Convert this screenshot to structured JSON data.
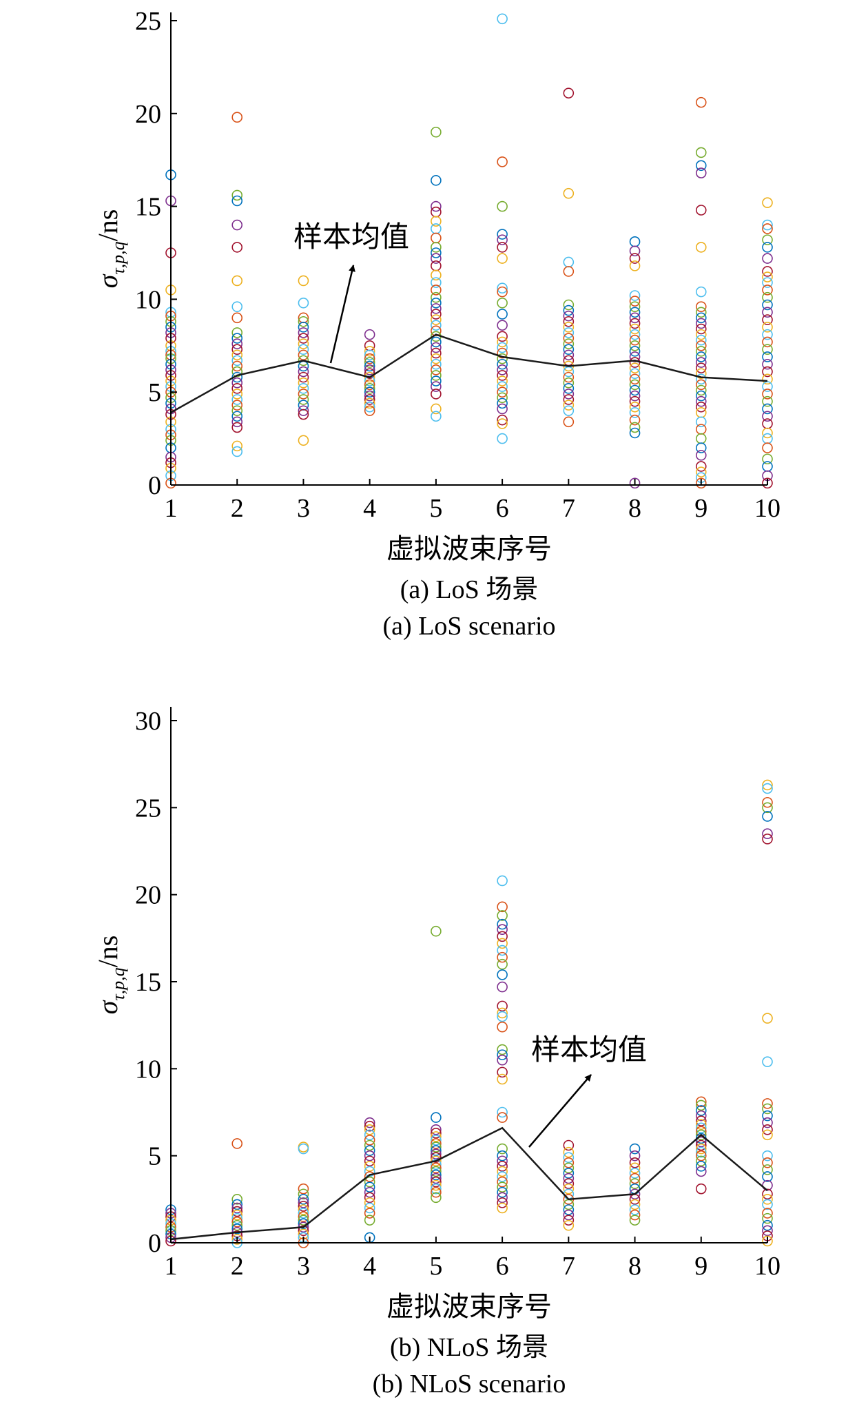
{
  "chart_data": [
    {
      "type": "scatter",
      "panel": "a",
      "ylabel": "σ",
      "ylabel_sub": "τ,p,q",
      "ylabel_unit": "/ns",
      "xlabel": "虚拟波束序号",
      "caption_cn": "(a) LoS 场景",
      "caption_en": "(a) LoS scenario",
      "annotation": "样本均值",
      "xlim": [
        1,
        10
      ],
      "ylim": [
        0,
        25
      ],
      "xticks": [
        1,
        2,
        3,
        4,
        5,
        6,
        7,
        8,
        9,
        10
      ],
      "yticks": [
        0,
        5,
        10,
        15,
        20,
        25
      ],
      "grid": false,
      "marker": "open-circle",
      "mean_line": {
        "name": "样本均值",
        "x": [
          1,
          2,
          3,
          4,
          5,
          6,
          7,
          8,
          9,
          10
        ],
        "y": [
          3.9,
          5.9,
          6.7,
          5.8,
          8.1,
          6.9,
          6.4,
          6.7,
          5.8,
          5.6
        ]
      },
      "points": [
        {
          "x": 1,
          "y": [
            16.7,
            15.3,
            12.5,
            10.5,
            9.3,
            9.1,
            8.8,
            8.5,
            8.2,
            7.9,
            7.5,
            7.2,
            7.0,
            6.8,
            6.5,
            6.2,
            5.9,
            5.6,
            5.3,
            5.0,
            4.7,
            4.4,
            4.1,
            3.8,
            3.4,
            3.0,
            2.7,
            2.4,
            2.0,
            1.5,
            1.2,
            0.9,
            0.5,
            0.1
          ]
        },
        {
          "x": 2,
          "y": [
            19.8,
            15.6,
            15.3,
            14.0,
            12.8,
            11.0,
            9.6,
            9.0,
            8.2,
            7.9,
            7.6,
            7.3,
            7.0,
            6.7,
            6.4,
            6.1,
            5.8,
            5.5,
            5.2,
            4.9,
            4.6,
            4.3,
            4.0,
            3.7,
            3.4,
            3.1,
            2.1,
            1.8
          ]
        },
        {
          "x": 3,
          "y": [
            11.0,
            9.8,
            9.0,
            8.8,
            8.5,
            8.2,
            7.9,
            7.6,
            7.3,
            7.0,
            6.7,
            6.4,
            6.1,
            5.8,
            5.5,
            5.2,
            4.9,
            4.6,
            4.3,
            4.0,
            3.8,
            2.4
          ]
        },
        {
          "x": 4,
          "y": [
            8.1,
            7.5,
            7.2,
            7.0,
            6.8,
            6.6,
            6.4,
            6.2,
            6.0,
            5.8,
            5.6,
            5.4,
            5.2,
            5.0,
            4.8,
            4.6,
            4.4,
            4.2,
            4.0
          ]
        },
        {
          "x": 5,
          "y": [
            19.0,
            16.4,
            15.0,
            14.7,
            14.2,
            13.8,
            13.3,
            12.8,
            12.5,
            12.2,
            11.8,
            11.3,
            10.9,
            10.5,
            10.1,
            9.8,
            9.5,
            9.2,
            8.9,
            8.6,
            8.3,
            8.0,
            7.7,
            7.4,
            7.1,
            6.8,
            6.5,
            6.2,
            5.9,
            5.6,
            5.3,
            4.9,
            4.1,
            3.7
          ]
        },
        {
          "x": 6,
          "y": [
            25.1,
            17.4,
            15.0,
            13.5,
            13.2,
            12.8,
            12.2,
            10.6,
            10.4,
            9.8,
            9.2,
            8.6,
            8.0,
            7.7,
            7.4,
            7.1,
            6.8,
            6.5,
            6.2,
            5.9,
            5.6,
            5.3,
            5.0,
            4.7,
            4.4,
            4.1,
            3.5,
            3.3,
            2.5
          ]
        },
        {
          "x": 7,
          "y": [
            21.1,
            15.7,
            12.0,
            11.5,
            9.7,
            9.4,
            9.1,
            8.8,
            8.5,
            8.2,
            7.9,
            7.6,
            7.3,
            7.0,
            6.7,
            6.4,
            6.1,
            5.8,
            5.5,
            5.2,
            4.9,
            4.6,
            4.3,
            4.0,
            3.4
          ]
        },
        {
          "x": 8,
          "y": [
            13.1,
            12.6,
            12.2,
            11.8,
            10.2,
            9.9,
            9.6,
            9.3,
            9.0,
            8.7,
            8.4,
            8.1,
            7.8,
            7.5,
            7.2,
            6.9,
            6.6,
            6.3,
            6.0,
            5.7,
            5.4,
            5.1,
            4.8,
            4.5,
            4.2,
            3.9,
            3.5,
            3.1,
            2.8,
            0.1
          ]
        },
        {
          "x": 9,
          "y": [
            20.6,
            17.9,
            17.2,
            16.8,
            14.8,
            12.8,
            10.4,
            9.6,
            9.3,
            9.0,
            8.7,
            8.4,
            8.1,
            7.8,
            7.5,
            7.2,
            6.9,
            6.6,
            6.3,
            6.0,
            5.7,
            5.4,
            5.1,
            4.8,
            4.5,
            4.2,
            3.9,
            3.4,
            3.0,
            2.5,
            2.0,
            1.6,
            1.0,
            0.7,
            0.4,
            0.1
          ]
        },
        {
          "x": 10,
          "y": [
            15.2,
            14.0,
            13.8,
            13.2,
            12.8,
            12.2,
            11.5,
            11.2,
            10.9,
            10.5,
            10.1,
            9.7,
            9.3,
            8.9,
            8.5,
            8.1,
            7.7,
            7.3,
            6.9,
            6.5,
            6.1,
            5.7,
            5.3,
            4.9,
            4.5,
            4.1,
            3.7,
            3.3,
            2.8,
            2.5,
            2.0,
            1.4,
            1.0,
            0.5,
            0.1
          ]
        }
      ]
    },
    {
      "type": "scatter",
      "panel": "b",
      "ylabel": "σ",
      "ylabel_sub": "τ,p,q",
      "ylabel_unit": "/ns",
      "xlabel": "虚拟波束序号",
      "caption_cn": "(b) NLoS 场景",
      "caption_en": "(b) NLoS scenario",
      "annotation": "样本均值",
      "xlim": [
        1,
        10
      ],
      "ylim": [
        0,
        30
      ],
      "xticks": [
        1,
        2,
        3,
        4,
        5,
        6,
        7,
        8,
        9,
        10
      ],
      "yticks": [
        0,
        5,
        10,
        15,
        20,
        25,
        30
      ],
      "grid": false,
      "marker": "open-circle",
      "mean_line": {
        "name": "样本均值",
        "x": [
          1,
          2,
          3,
          4,
          5,
          6,
          7,
          8,
          9,
          10
        ],
        "y": [
          0.2,
          0.6,
          0.9,
          3.9,
          4.7,
          6.6,
          2.5,
          2.8,
          6.2,
          3.0
        ]
      },
      "points": [
        {
          "x": 1,
          "y": [
            1.9,
            1.7,
            1.5,
            1.3,
            1.1,
            0.9,
            0.7,
            0.5,
            0.3,
            0.1
          ]
        },
        {
          "x": 2,
          "y": [
            5.7,
            2.5,
            2.2,
            2.0,
            1.8,
            1.6,
            1.4,
            1.2,
            1.0,
            0.8,
            0.6,
            0.4,
            0.2,
            0.0
          ]
        },
        {
          "x": 3,
          "y": [
            5.5,
            5.4,
            3.1,
            2.8,
            2.5,
            2.3,
            2.1,
            1.9,
            1.7,
            1.5,
            1.3,
            1.1,
            0.9,
            0.7,
            0.5,
            0.3,
            0.0
          ]
        },
        {
          "x": 4,
          "y": [
            6.9,
            6.7,
            6.5,
            6.2,
            5.9,
            5.6,
            5.3,
            5.0,
            4.7,
            4.4,
            4.1,
            3.8,
            3.5,
            3.2,
            2.9,
            2.6,
            2.3,
            2.0,
            1.7,
            1.3,
            0.3
          ]
        },
        {
          "x": 5,
          "y": [
            17.9,
            7.2,
            6.5,
            6.3,
            6.1,
            5.9,
            5.7,
            5.5,
            5.3,
            5.1,
            4.9,
            4.7,
            4.5,
            4.3,
            4.1,
            3.9,
            3.7,
            3.5,
            3.3,
            3.1,
            2.9,
            2.6
          ]
        },
        {
          "x": 6,
          "y": [
            20.8,
            19.3,
            18.8,
            18.3,
            18.0,
            17.6,
            17.2,
            16.8,
            16.4,
            16.0,
            15.4,
            14.7,
            13.6,
            13.2,
            13.0,
            12.4,
            11.1,
            10.8,
            10.5,
            9.8,
            9.4,
            7.5,
            7.2,
            5.4,
            5.0,
            4.7,
            4.4,
            4.1,
            3.8,
            3.5,
            3.2,
            2.9,
            2.6,
            2.3,
            2.0
          ]
        },
        {
          "x": 7,
          "y": [
            5.6,
            5.2,
            4.9,
            4.6,
            4.3,
            4.0,
            3.7,
            3.4,
            3.1,
            2.8,
            2.5,
            2.2,
            1.9,
            1.6,
            1.3,
            1.0
          ]
        },
        {
          "x": 8,
          "y": [
            5.4,
            5.0,
            4.6,
            4.3,
            4.0,
            3.7,
            3.4,
            3.1,
            2.8,
            2.5,
            2.2,
            1.9,
            1.6,
            1.3
          ]
        },
        {
          "x": 9,
          "y": [
            8.1,
            7.9,
            7.6,
            7.3,
            7.0,
            6.8,
            6.6,
            6.4,
            6.2,
            6.0,
            5.8,
            5.6,
            5.4,
            5.2,
            5.0,
            4.7,
            4.4,
            4.1,
            3.1
          ]
        },
        {
          "x": 10,
          "y": [
            26.3,
            26.1,
            25.3,
            25.0,
            24.5,
            23.5,
            23.2,
            12.9,
            10.4,
            8.0,
            7.7,
            7.3,
            6.9,
            6.5,
            6.2,
            5.0,
            4.6,
            4.2,
            3.8,
            3.3,
            2.8,
            2.5,
            2.2,
            1.7,
            1.4,
            1.0,
            0.7,
            0.4,
            0.1
          ]
        }
      ]
    }
  ],
  "colors": {
    "axis": "#000000",
    "mean_line": "#1a1a1a",
    "marker_palette": [
      "#0072BD",
      "#D95319",
      "#EDB120",
      "#7E2F8E",
      "#77AC30",
      "#4DBEEE",
      "#A2142F"
    ]
  }
}
